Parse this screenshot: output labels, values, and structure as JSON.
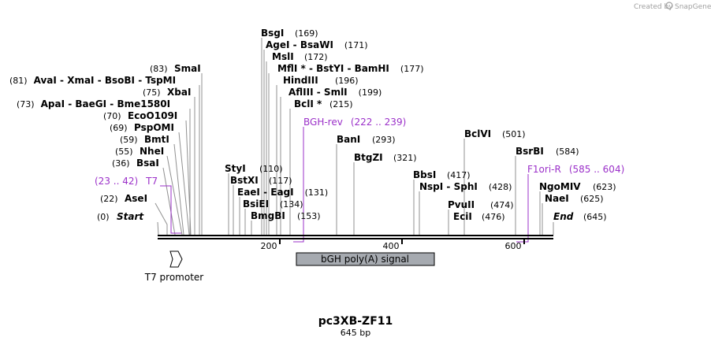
{
  "credit": {
    "prefix": "Created by",
    "brand": "SnapGene"
  },
  "title": "pc3XB-ZF11",
  "subtitle": "645 bp",
  "colors": {
    "primer": "#9b30c9",
    "feature_fill": "#a6aab0",
    "line": "#000000",
    "leader": "#909090"
  },
  "ticks": [
    "200",
    "400",
    "600"
  ],
  "sites": [
    {
      "pos": "(169)",
      "name": "BsgI"
    },
    {
      "pos": "(171)",
      "name": "AgeI",
      "name2": "BsaWI"
    },
    {
      "pos": "(172)",
      "name": "MslI"
    },
    {
      "pos": "(177)",
      "name": "MflI *",
      "name2": "BstYI",
      "name3": "BamHI"
    },
    {
      "pos": "(196)",
      "name": "HindIII"
    },
    {
      "pos": "(199)",
      "name": "AflIII",
      "name2": "SmlI"
    },
    {
      "pos": "(215)",
      "name": "BclI *"
    },
    {
      "pos": "(83)",
      "name": "SmaI"
    },
    {
      "pos": "(81)",
      "name": "AvaI",
      "name2": "XmaI",
      "name3": "BsoBI",
      "name4": "TspMI"
    },
    {
      "pos": "(75)",
      "name": "XbaI"
    },
    {
      "pos": "(73)",
      "name": "ApaI",
      "name2": "BaeGI",
      "name3": "Bme1580I"
    },
    {
      "pos": "(70)",
      "name": "EcoO109I"
    },
    {
      "pos": "(69)",
      "name": "PspOMI"
    },
    {
      "pos": "(59)",
      "name": "BmtI"
    },
    {
      "pos": "(55)",
      "name": "NheI"
    },
    {
      "pos": "(36)",
      "name": "BsaI"
    },
    {
      "pos": "(22)",
      "name": "AseI"
    },
    {
      "pos": "(0)",
      "name": "Start"
    },
    {
      "pos": "(110)",
      "name": "StyI"
    },
    {
      "pos": "(117)",
      "name": "BstXI"
    },
    {
      "pos": "(131)",
      "name": "EaeI",
      "name2": "EagI"
    },
    {
      "pos": "(134)",
      "name": "BsiEI"
    },
    {
      "pos": "(153)",
      "name": "BmgBI"
    },
    {
      "pos": "(293)",
      "name": "BanI"
    },
    {
      "pos": "(321)",
      "name": "BtgZI"
    },
    {
      "pos": "(417)",
      "name": "BbsI"
    },
    {
      "pos": "(428)",
      "name": "NspI",
      "name2": "SphI"
    },
    {
      "pos": "(474)",
      "name": "PvuII"
    },
    {
      "pos": "(476)",
      "name": "EciI"
    },
    {
      "pos": "(501)",
      "name": "BclVI"
    },
    {
      "pos": "(584)",
      "name": "BsrBI"
    },
    {
      "pos": "(623)",
      "name": "NgoMIV"
    },
    {
      "pos": "(625)",
      "name": "NaeI"
    },
    {
      "pos": "(645)",
      "name": "End"
    }
  ],
  "primers": [
    {
      "name": "BGH-rev",
      "range": "(222 .. 239)"
    },
    {
      "name": "T7",
      "range": "(23 .. 42)"
    },
    {
      "name": "F1ori-R",
      "range": "(585 .. 604)"
    }
  ],
  "features": [
    {
      "name": "T7 promoter"
    },
    {
      "name": "bGH poly(A) signal"
    }
  ]
}
